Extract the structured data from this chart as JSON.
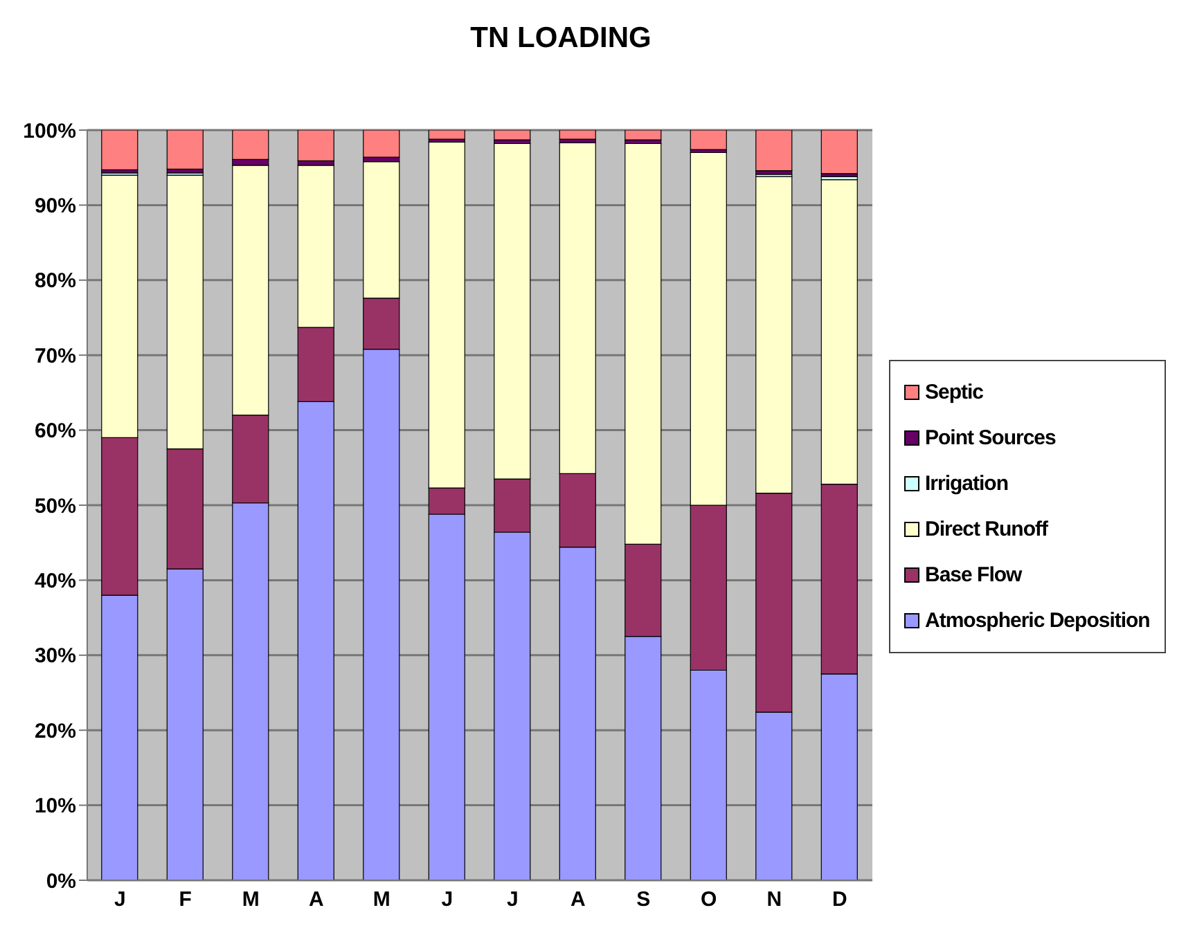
{
  "chart_data": {
    "type": "bar",
    "title": "TN LOADING",
    "stacked": true,
    "categories": [
      "J",
      "F",
      "M",
      "A",
      "M",
      "J",
      "J",
      "A",
      "S",
      "O",
      "N",
      "D"
    ],
    "series": [
      {
        "name": "Atmospheric Deposition",
        "color": "#9999ff",
        "values": [
          38,
          41.5,
          50.3,
          63.8,
          70.8,
          48.8,
          46.4,
          44.4,
          32.5,
          28,
          22.4,
          27.5
        ]
      },
      {
        "name": "Base Flow",
        "color": "#993366",
        "values": [
          21,
          16,
          11.7,
          9.9,
          6.8,
          3.5,
          7.1,
          9.8,
          12.3,
          22,
          29.2,
          25.3
        ]
      },
      {
        "name": "Direct Runoff",
        "color": "#ffffcc",
        "values": [
          35,
          36.5,
          33.3,
          21.6,
          18.2,
          46.1,
          44.7,
          44.1,
          53.4,
          47,
          42.2,
          40.6
        ]
      },
      {
        "name": "Irrigation",
        "color": "#ccffff",
        "values": [
          0.3,
          0.3,
          0,
          0,
          0,
          0,
          0,
          0,
          0,
          0,
          0.3,
          0.4
        ]
      },
      {
        "name": "Point Sources",
        "color": "#660066",
        "values": [
          0.4,
          0.5,
          0.8,
          0.6,
          0.6,
          0.4,
          0.5,
          0.5,
          0.5,
          0.4,
          0.5,
          0.4
        ]
      },
      {
        "name": "Septic",
        "color": "#ff8080",
        "values": [
          5.3,
          5.2,
          3.9,
          4.1,
          3.6,
          1.2,
          1.3,
          1.2,
          1.3,
          2.6,
          5.4,
          5.8
        ]
      }
    ],
    "ylim": [
      0,
      100
    ],
    "yticks": [
      {
        "value": 0,
        "label": "0%"
      },
      {
        "value": 10,
        "label": "10%"
      },
      {
        "value": 20,
        "label": "20%"
      },
      {
        "value": 30,
        "label": "30%"
      },
      {
        "value": 40,
        "label": "40%"
      },
      {
        "value": 50,
        "label": "50%"
      },
      {
        "value": 60,
        "label": "60%"
      },
      {
        "value": 70,
        "label": "70%"
      },
      {
        "value": 80,
        "label": "80%"
      },
      {
        "value": 90,
        "label": "90%"
      },
      {
        "value": 100,
        "label": "100%"
      }
    ],
    "grid": "y",
    "legend": "right"
  }
}
